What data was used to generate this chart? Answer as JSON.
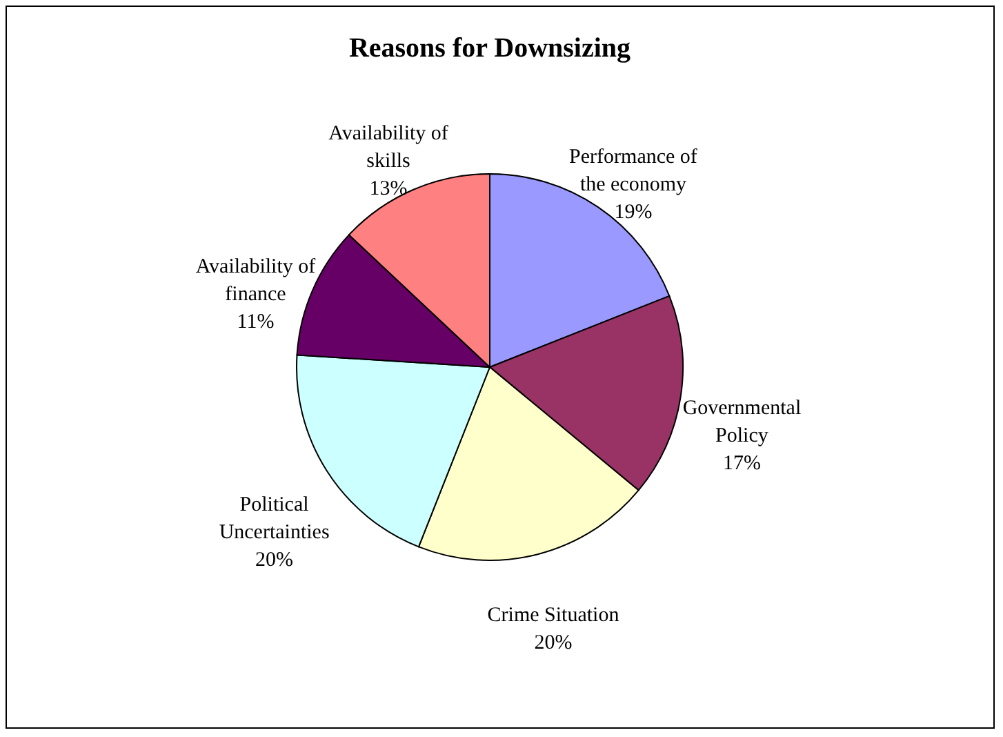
{
  "chart_data": {
    "type": "pie",
    "title": "Reasons for Downsizing",
    "categories": [
      "Performance of the economy",
      "Governmental Policy",
      "Crime Situation",
      "Political Uncertainties",
      "Availability of finance",
      "Availability of skills"
    ],
    "values": [
      19,
      17,
      20,
      20,
      11,
      13
    ],
    "value_labels": [
      "19%",
      "17%",
      "20%",
      "20%",
      "11%",
      "13%"
    ],
    "colors": [
      "#9999ff",
      "#993366",
      "#ffffcc",
      "#ccffff",
      "#660066",
      "#ff8080"
    ],
    "legend": false
  }
}
